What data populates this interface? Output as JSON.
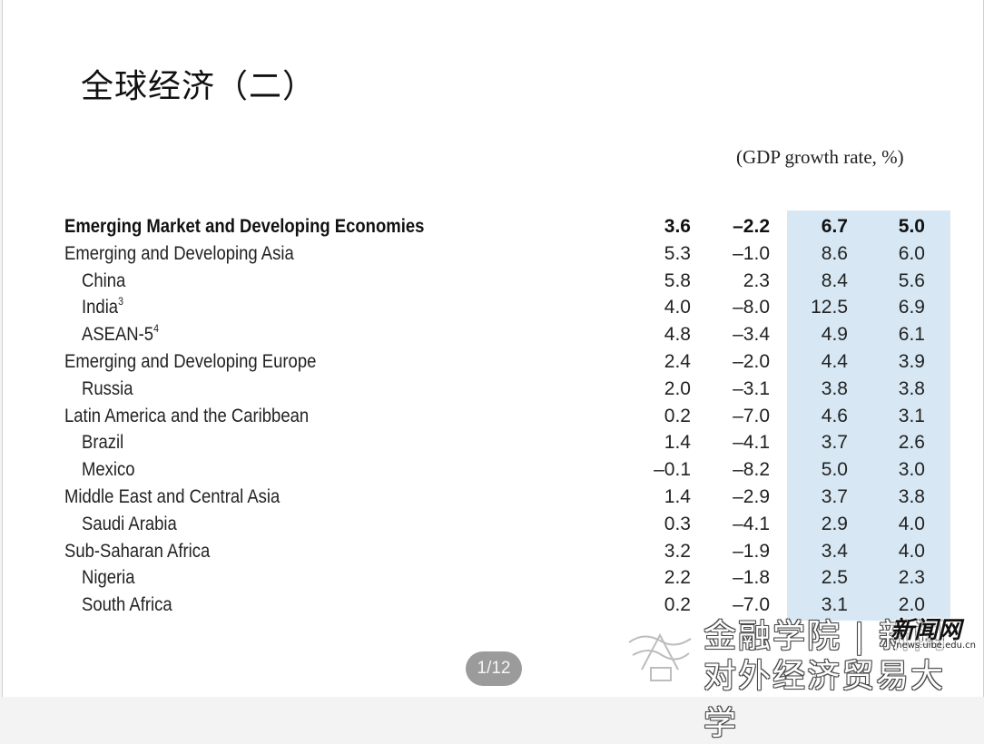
{
  "slide": {
    "title": "全球经济（二）",
    "subtitle": "(GDP growth rate, %)",
    "page_indicator": "1/12"
  },
  "table": {
    "rows": [
      {
        "label": "Emerging Market and Developing Economies",
        "sup": "",
        "indent": 0,
        "bold": true,
        "values": [
          "3.6",
          "–2.2",
          "6.7",
          "5.0"
        ]
      },
      {
        "label": "Emerging and Developing Asia",
        "sup": "",
        "indent": 0,
        "bold": false,
        "values": [
          "5.3",
          "–1.0",
          "8.6",
          "6.0"
        ]
      },
      {
        "label": "China",
        "sup": "",
        "indent": 1,
        "bold": false,
        "values": [
          "5.8",
          "2.3",
          "8.4",
          "5.6"
        ]
      },
      {
        "label": "India",
        "sup": "3",
        "indent": 1,
        "bold": false,
        "values": [
          "4.0",
          "–8.0",
          "12.5",
          "6.9"
        ]
      },
      {
        "label": "ASEAN-5",
        "sup": "4",
        "indent": 1,
        "bold": false,
        "values": [
          "4.8",
          "–3.4",
          "4.9",
          "6.1"
        ]
      },
      {
        "label": "Emerging and Developing Europe",
        "sup": "",
        "indent": 0,
        "bold": false,
        "values": [
          "2.4",
          "–2.0",
          "4.4",
          "3.9"
        ]
      },
      {
        "label": "Russia",
        "sup": "",
        "indent": 1,
        "bold": false,
        "values": [
          "2.0",
          "–3.1",
          "3.8",
          "3.8"
        ]
      },
      {
        "label": "Latin America and the Caribbean",
        "sup": "",
        "indent": 0,
        "bold": false,
        "values": [
          "0.2",
          "–7.0",
          "4.6",
          "3.1"
        ]
      },
      {
        "label": "Brazil",
        "sup": "",
        "indent": 1,
        "bold": false,
        "values": [
          "1.4",
          "–4.1",
          "3.7",
          "2.6"
        ]
      },
      {
        "label": "Mexico",
        "sup": "",
        "indent": 1,
        "bold": false,
        "values": [
          "–0.1",
          "–8.2",
          "5.0",
          "3.0"
        ]
      },
      {
        "label": "Middle East and Central Asia",
        "sup": "",
        "indent": 0,
        "bold": false,
        "values": [
          "1.4",
          "–2.9",
          "3.7",
          "3.8"
        ]
      },
      {
        "label": "Saudi Arabia",
        "sup": "",
        "indent": 1,
        "bold": false,
        "values": [
          "0.3",
          "–4.1",
          "2.9",
          "4.0"
        ]
      },
      {
        "label": "Sub-Saharan Africa",
        "sup": "",
        "indent": 0,
        "bold": false,
        "values": [
          "3.2",
          "–1.9",
          "3.4",
          "4.0"
        ]
      },
      {
        "label": "Nigeria",
        "sup": "",
        "indent": 1,
        "bold": false,
        "values": [
          "2.2",
          "–1.8",
          "2.5",
          "2.3"
        ]
      },
      {
        "label": "South Africa",
        "sup": "",
        "indent": 1,
        "bold": false,
        "values": [
          "0.2",
          "–7.0",
          "3.1",
          "2.0"
        ]
      }
    ],
    "highlight_color": "#d7e8f4"
  },
  "watermark": {
    "line1": "金融学院 | 新闻",
    "line2": "对外经济贸易大学",
    "site_name": "新闻网",
    "site_url": "news.uibe.edu.cn"
  }
}
